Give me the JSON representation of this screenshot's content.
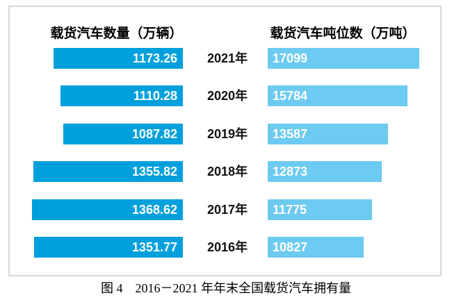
{
  "figure": {
    "caption": "图 4　2016－2021 年年末全国载货汽车拥有量"
  },
  "chart_data": {
    "type": "bar",
    "orientation": "horizontal-mirrored-tornado",
    "title": "图 4　2016－2021 年年末全国载货汽车拥有量",
    "categories": [
      "2021年",
      "2020年",
      "2019年",
      "2018年",
      "2017年",
      "2016年"
    ],
    "series": [
      {
        "name": "载货汽车数量（万辆）",
        "side": "left",
        "values": [
          1173.26,
          1110.28,
          1087.82,
          1355.82,
          1368.62,
          1351.77
        ],
        "decimals": 2,
        "color": "#00A0DC",
        "value_label_color": "#FFFFFF",
        "bar_alignment": "right-edge-common, grows leftward",
        "axis_range": [
          0,
          1368.62
        ]
      },
      {
        "name": "载货汽车吨位数（万吨）",
        "side": "right",
        "values": [
          17099,
          15784,
          13587,
          12873,
          11775,
          10827
        ],
        "decimals": 0,
        "color": "#6DCBF1",
        "value_label_color": "#FFFFFF",
        "bar_alignment": "left-edge-common, grows rightward",
        "axis_range": [
          0,
          17099
        ]
      }
    ],
    "legend_position": "column headers above each bar group",
    "grid": false,
    "value_labels": "inside bars",
    "center_axis_labels": "years between the two bar groups"
  },
  "colors": {
    "panel_border": "#D8D8D8",
    "background": "#FFFFFF",
    "year_label": "#111111",
    "header_text": "#000000"
  }
}
